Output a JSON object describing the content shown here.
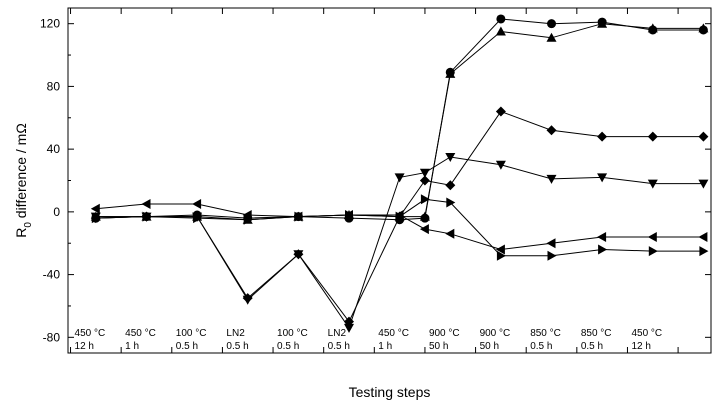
{
  "chart_data": {
    "type": "line",
    "xlabel": "Testing steps",
    "ylabel_main": "R",
    "ylabel_sub": "0",
    "ylabel_rest": " difference / mΩ",
    "ylim": [
      -90,
      130
    ],
    "xlim": [
      0.45,
      13.15
    ],
    "yticks": [
      -80,
      -40,
      0,
      40,
      80,
      120
    ],
    "ytick_labels": [
      "-80",
      "-40",
      "0",
      "40",
      "80",
      "120"
    ],
    "grid": false,
    "steps": [
      {
        "line1": "450 °C",
        "line2": "12 h"
      },
      {
        "line1": "450 °C",
        "line2": "1 h"
      },
      {
        "line1": "100 °C",
        "line2": "0.5 h"
      },
      {
        "line1": "LN2",
        "line2": "0.5 h"
      },
      {
        "line1": "100 °C",
        "line2": "0.5 h"
      },
      {
        "line1": "LN2",
        "line2": "0.5 h"
      },
      {
        "line1": "450 °C",
        "line2": "1 h"
      },
      {
        "line1": "900 °C",
        "line2": "50 h"
      },
      {
        "line1": "900 °C",
        "line2": "50 h"
      },
      {
        "line1": "850 °C",
        "line2": "0.5 h"
      },
      {
        "line1": "850 °C",
        "line2": "0.5 h"
      },
      {
        "line1": "450 °C",
        "line2": "12 h"
      }
    ],
    "series": [
      {
        "marker": "circle",
        "x": [
          1,
          2,
          3,
          4,
          5,
          6,
          7,
          7.5,
          8,
          9,
          10,
          11,
          12,
          13
        ],
        "values": [
          -4,
          -3,
          -2,
          -4,
          -3,
          -4,
          -5,
          -4,
          89,
          123,
          120,
          121,
          116,
          116
        ]
      },
      {
        "marker": "triangle-up",
        "x": [
          1,
          2,
          3,
          4,
          5,
          6,
          7,
          7.5,
          8,
          9,
          10,
          11,
          12,
          13
        ],
        "values": [
          -3,
          -3,
          -3,
          -5,
          -3,
          -2,
          -3,
          -3,
          88,
          115,
          111,
          120,
          117,
          117
        ]
      },
      {
        "marker": "diamond",
        "x": [
          1,
          2,
          3,
          4,
          5,
          6,
          7,
          7.5,
          8,
          9,
          10,
          11,
          12,
          13
        ],
        "values": [
          -4,
          -3,
          -3,
          -55,
          -27,
          -70,
          -3,
          20,
          17,
          64,
          52,
          48,
          48,
          48
        ]
      },
      {
        "marker": "triangle-down",
        "x": [
          1,
          2,
          3,
          4,
          5,
          6,
          7,
          7.5,
          8,
          9,
          10,
          11,
          12,
          13
        ],
        "values": [
          -3,
          -3,
          -3,
          -56,
          -27,
          -74,
          22,
          25,
          35,
          30,
          21,
          22,
          18,
          18
        ]
      },
      {
        "marker": "triangle-left",
        "x": [
          1,
          2,
          3,
          4,
          5,
          6,
          7,
          7.5,
          8,
          9,
          10,
          11,
          12,
          13
        ],
        "values": [
          2,
          5,
          5,
          -2,
          -3,
          -2,
          -2,
          -11,
          -14,
          -24,
          -20,
          -16,
          -16,
          -16
        ]
      },
      {
        "marker": "triangle-right",
        "x": [
          1,
          2,
          3,
          4,
          5,
          6,
          7,
          7.5,
          8,
          9,
          10,
          11,
          12,
          13
        ],
        "values": [
          -4,
          -3,
          -4,
          -5,
          -3,
          -2,
          -3,
          8,
          6,
          -28,
          -28,
          -24,
          -25,
          -25
        ]
      }
    ]
  }
}
